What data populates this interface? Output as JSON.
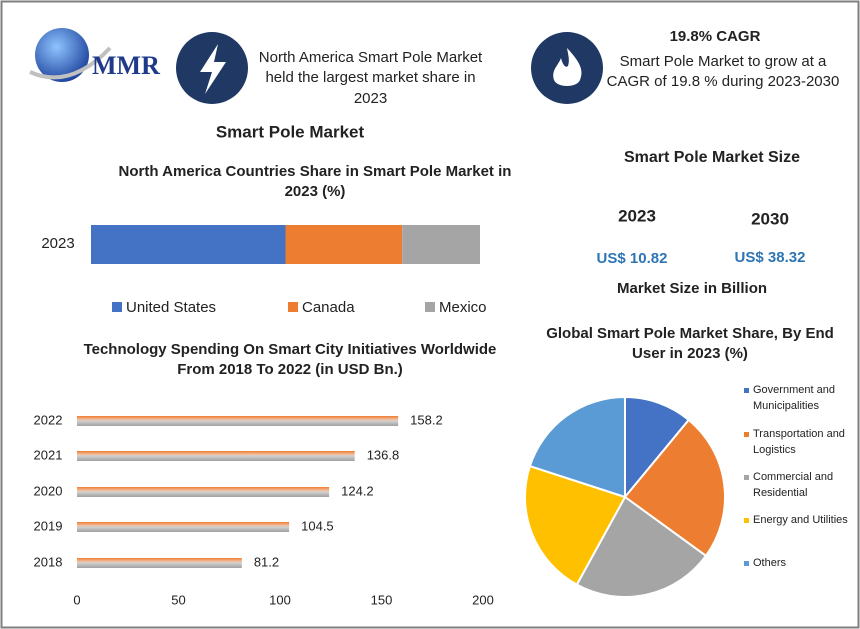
{
  "header": {
    "logo": "MMR",
    "highlight": "North America Smart Pole Market held the largest market share in 2023",
    "cagr_title": "19.8% CAGR",
    "cagr_text": "Smart Pole Market to grow at a CAGR of 19.8 % during 2023-2030"
  },
  "section_title": "Smart Pole Market",
  "market_size": {
    "title": "Smart Pole Market Size",
    "years": [
      "2023",
      "2030"
    ],
    "values": [
      "US$ 10.82",
      "US$ 38.32"
    ],
    "note": "Market Size in Billion"
  },
  "chart_data": [
    {
      "type": "stacked-bar",
      "title": "North America Countries Share in Smart Pole Market in 2023 (%)",
      "categories": [
        "2023"
      ],
      "xlim": [
        0,
        100
      ],
      "series": [
        {
          "name": "United States",
          "color": "#4472c4",
          "values": [
            50
          ]
        },
        {
          "name": "Canada",
          "color": "#ed7d31",
          "values": [
            30
          ]
        },
        {
          "name": "Mexico",
          "color": "#a5a5a5",
          "values": [
            20
          ]
        }
      ]
    },
    {
      "type": "bar",
      "title": "Technology Spending On Smart City Initiatives Worldwide  From 2018 To 2022 (in USD Bn.)",
      "categories": [
        "2022",
        "2021",
        "2020",
        "2019",
        "2018"
      ],
      "values": [
        158.2,
        136.8,
        124.2,
        104.5,
        81.2
      ],
      "color": "#ed7d31",
      "xlim": [
        0,
        200
      ],
      "xticks": [
        0,
        50,
        100,
        150,
        200
      ]
    },
    {
      "type": "pie",
      "title": "Global Smart Pole Market Share, By End User in 2023 (%)",
      "categories": [
        "Government and Municipalities",
        "Transportation and Logistics",
        "Commercial and Residential",
        "Energy and Utilities",
        "Others"
      ],
      "values": [
        11,
        24,
        23,
        22,
        20
      ],
      "colors": [
        "#4472c4",
        "#ed7d31",
        "#a5a5a5",
        "#ffc000",
        "#5b9bd5"
      ]
    }
  ]
}
